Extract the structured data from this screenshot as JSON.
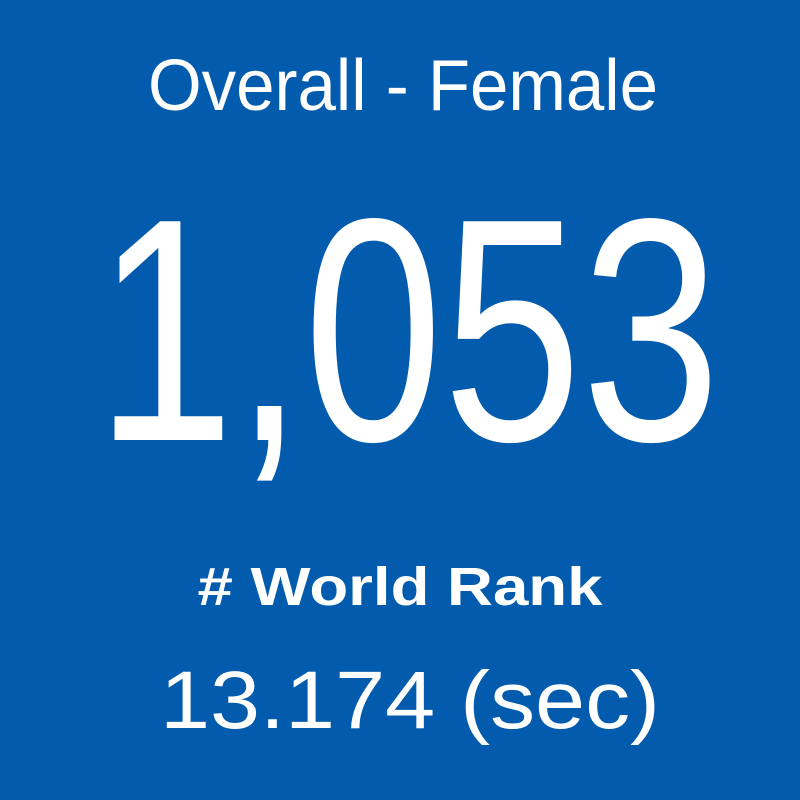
{
  "header": {
    "title": "Overall - Female"
  },
  "stat": {
    "value": "1,053",
    "label": "# World Rank",
    "detail": "13.174 (sec)"
  }
}
